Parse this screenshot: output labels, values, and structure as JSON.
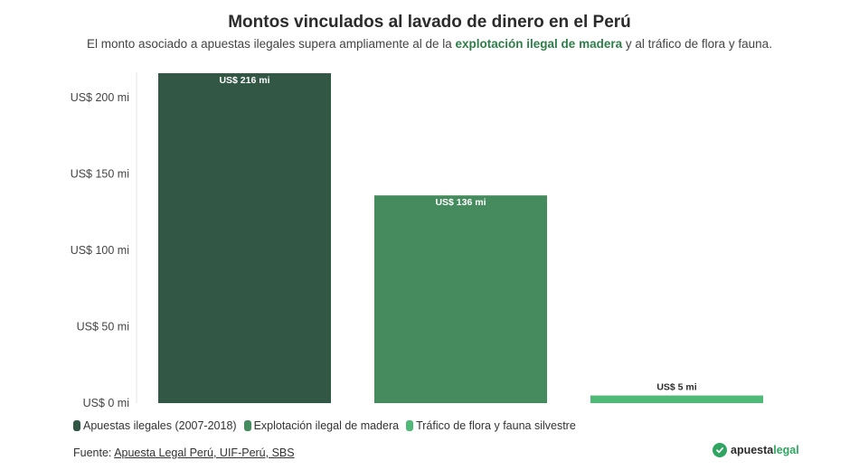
{
  "header": {
    "title": "Montos vinculados al lavado de dinero en el Perú",
    "subtitle_pre": "El monto asociado a apuestas ilegales supera ampliamente al de la ",
    "subtitle_highlight": "explotación ilegal de madera",
    "subtitle_post": " y al tráfico de flora y fauna."
  },
  "chart_data": {
    "type": "bar",
    "categories": [
      "Apuestas ilegales (2007-2018)",
      "Explotación ilegal de madera",
      "Tráfico de flora y fauna silvestre"
    ],
    "values": [
      216,
      136,
      5
    ],
    "data_labels": [
      "US$ 216 mi",
      "US$ 136 mi",
      "US$ 5 mi"
    ],
    "colors": [
      "#335745",
      "#468b5e",
      "#50b978"
    ],
    "ylim": [
      0,
      216
    ],
    "yticks": [
      0,
      50,
      100,
      150,
      200
    ],
    "ytick_labels": [
      "US$ 0 mi",
      "US$ 50 mi",
      "US$ 100 mi",
      "US$ 150 mi",
      "US$ 200 mi"
    ],
    "xlabel": "",
    "ylabel": "",
    "legend_position": "bottom-left"
  },
  "legend": {
    "items": [
      {
        "label": "Apuestas ilegales (2007-2018)",
        "color": "#335745"
      },
      {
        "label": "Explotación ilegal de madera",
        "color": "#468b5e"
      },
      {
        "label": "Tráfico de flora y fauna silvestre",
        "color": "#50b978"
      }
    ]
  },
  "footer": {
    "source_prefix": "Fuente: ",
    "source_link": "Apuesta Legal Perú, UIF-Perú, SBS",
    "logo_part1": "apuesta",
    "logo_part2": "legal",
    "logo_icon": "check-circle-icon"
  }
}
